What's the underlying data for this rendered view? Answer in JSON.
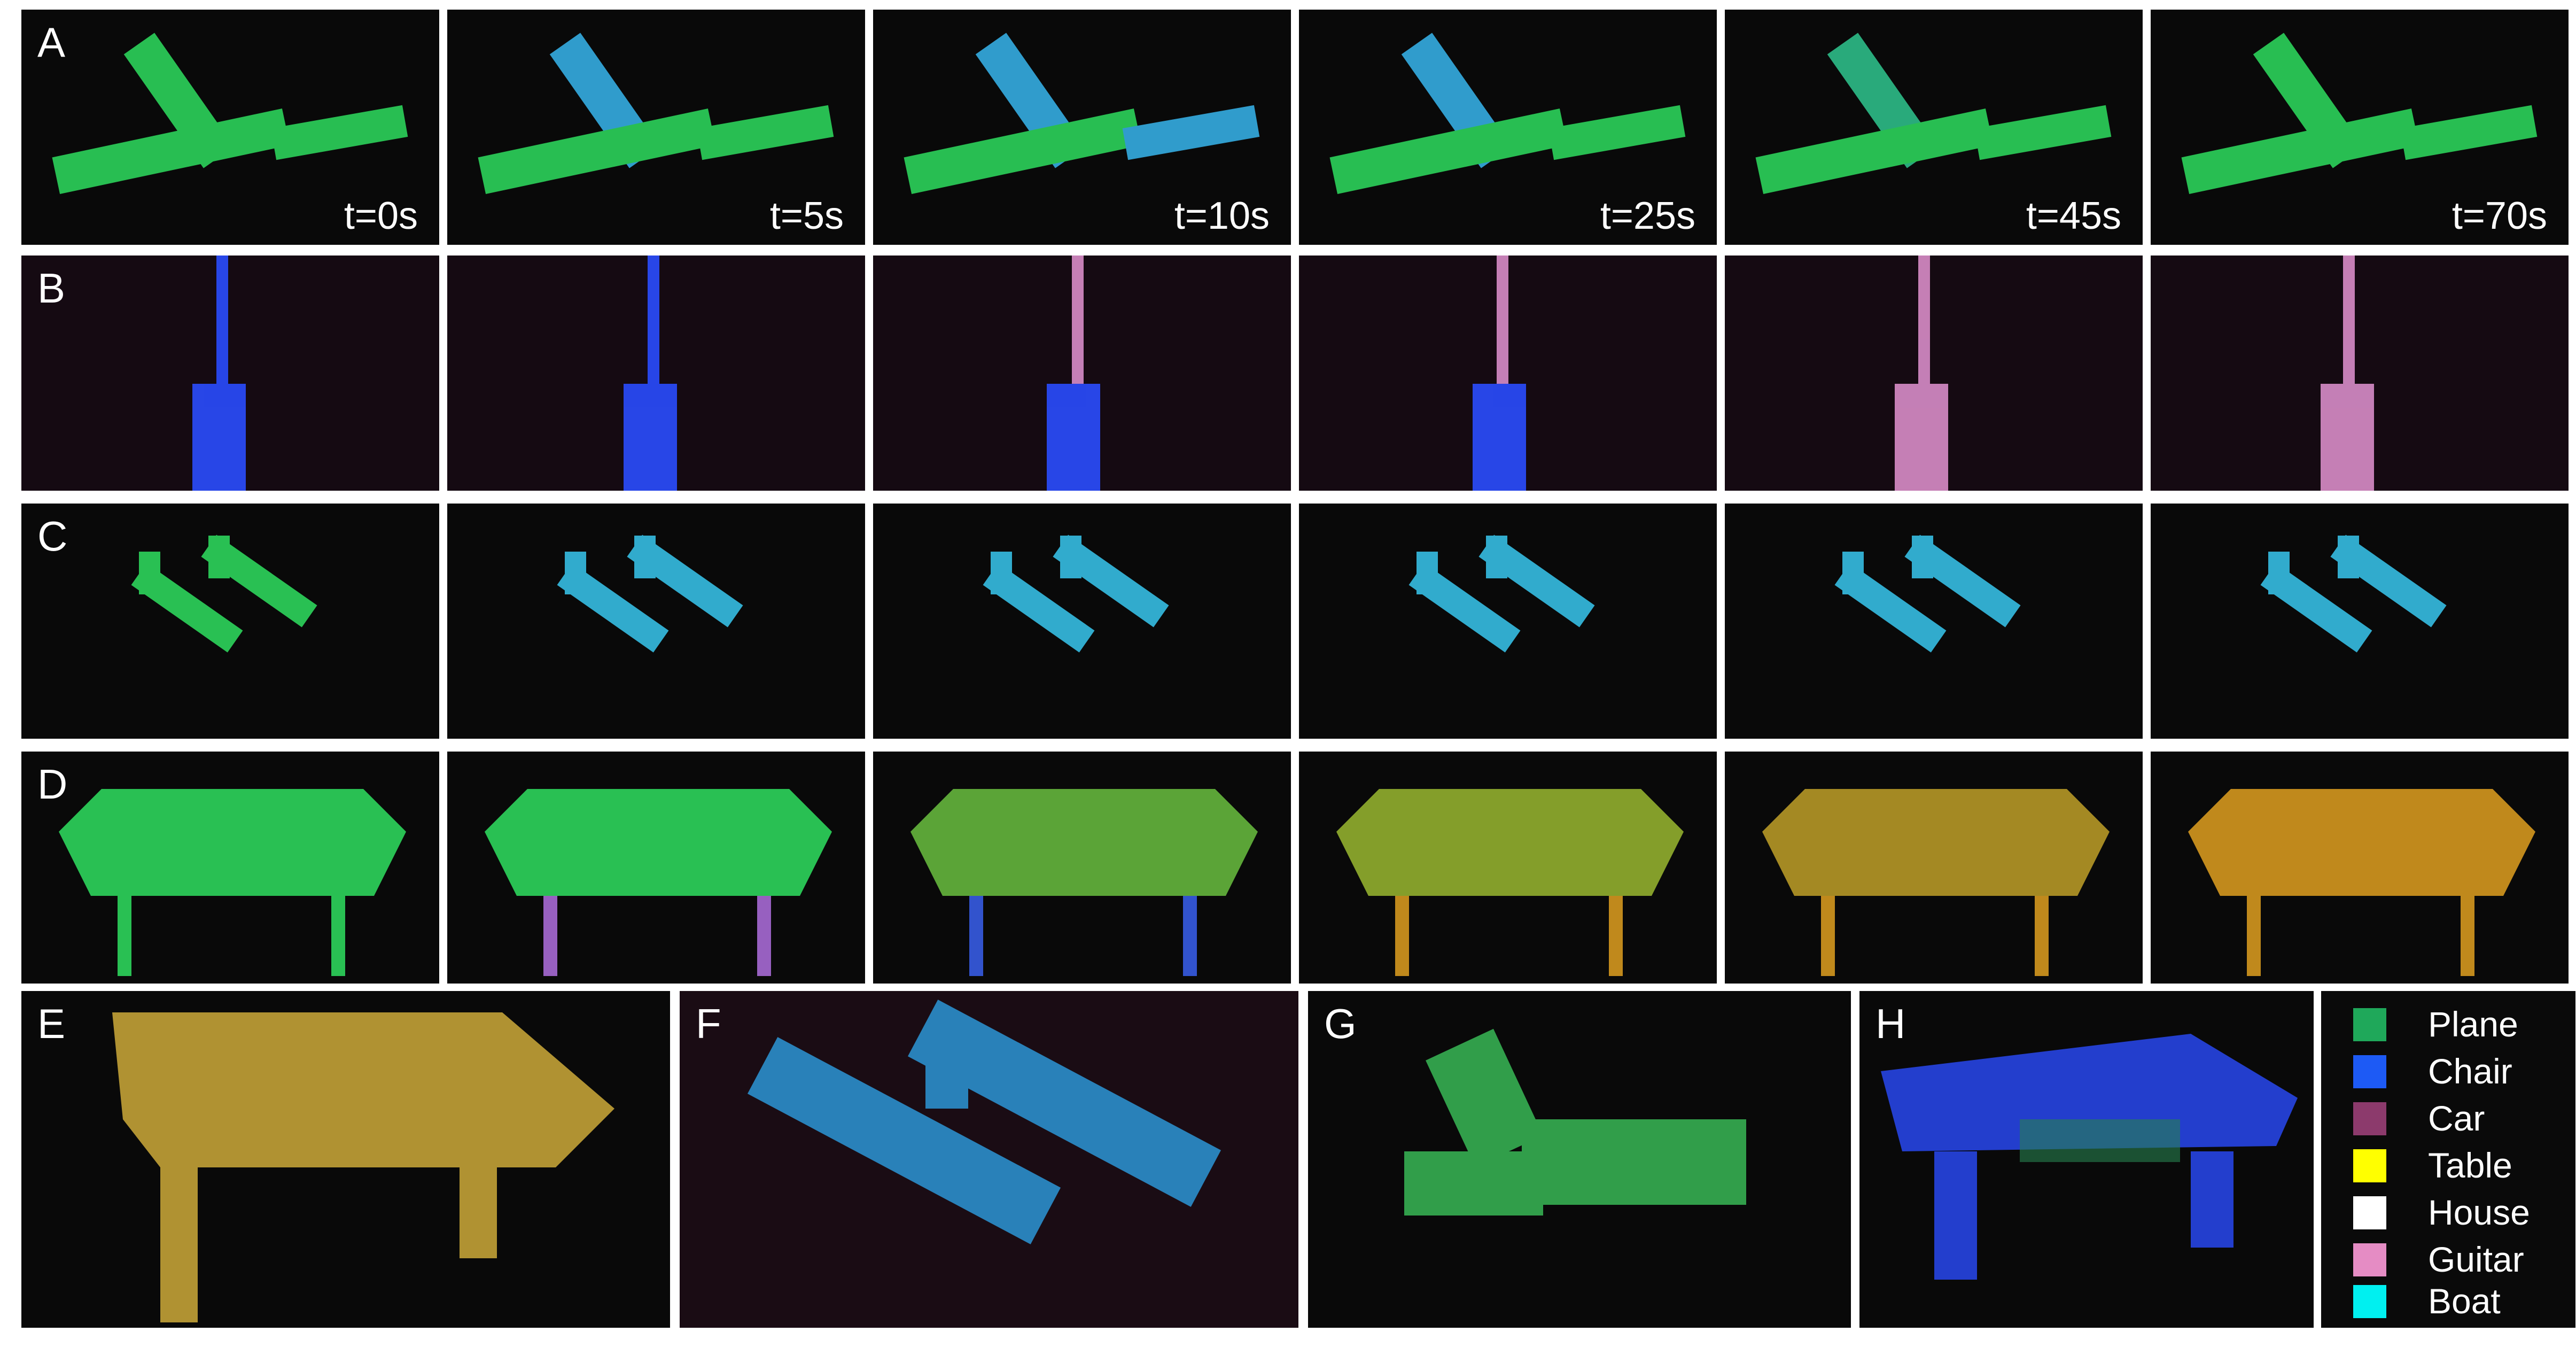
{
  "rows": [
    {
      "label": "A",
      "times": [
        "t=0s",
        "t=5s",
        "t=10s",
        "t=25s",
        "t=45s",
        "t=70s"
      ]
    },
    {
      "label": "B",
      "times": [
        "",
        "",
        "",
        "",
        "",
        ""
      ]
    },
    {
      "label": "C",
      "times": [
        "",
        "",
        "",
        "",
        "",
        ""
      ]
    },
    {
      "label": "D",
      "times": [
        "",
        "",
        "",
        "",
        "",
        ""
      ]
    }
  ],
  "bottom_panels": [
    {
      "label": "E"
    },
    {
      "label": "F"
    },
    {
      "label": "G"
    },
    {
      "label": "H"
    }
  ],
  "legend": [
    {
      "label": "Plane",
      "color": "#1fa85a"
    },
    {
      "label": "Chair",
      "color": "#1d5af5"
    },
    {
      "label": "Car",
      "color": "#8c3a6c"
    },
    {
      "label": "Table",
      "color": "#ffff00"
    },
    {
      "label": "House",
      "color": "#ffffff"
    },
    {
      "label": "Guitar",
      "color": "#e58cc4"
    },
    {
      "label": "Boat",
      "color": "#00f0f0"
    }
  ]
}
